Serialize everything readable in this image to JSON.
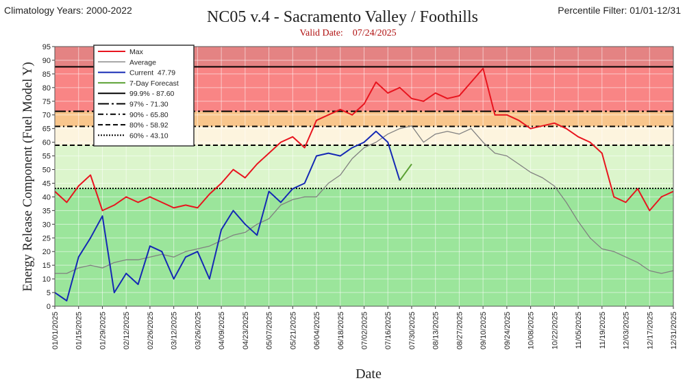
{
  "chart_data": {
    "type": "line",
    "title": "NC05 v.4 - Sacramento Valley / Foothills",
    "subtitle": "Valid Date:    07/24/2025",
    "top_left_note": "Climatology Years: 2000-2022",
    "top_right_note": "Percentile Filter:  01/01-12/31",
    "y_label": "Energy Release Component (Fuel Model Y)",
    "x_label": "Date",
    "x": [
      "01/01/2025",
      "01/08/2025",
      "01/15/2025",
      "01/22/2025",
      "01/29/2025",
      "02/05/2025",
      "02/12/2025",
      "02/19/2025",
      "02/26/2025",
      "03/05/2025",
      "03/12/2025",
      "03/19/2025",
      "03/26/2025",
      "04/02/2025",
      "04/09/2025",
      "04/16/2025",
      "04/23/2025",
      "04/30/2025",
      "05/07/2025",
      "05/14/2025",
      "05/21/2025",
      "05/28/2025",
      "06/04/2025",
      "06/11/2025",
      "06/18/2025",
      "06/25/2025",
      "07/02/2025",
      "07/09/2025",
      "07/16/2025",
      "07/23/2025",
      "07/30/2025",
      "08/06/2025",
      "08/13/2025",
      "08/20/2025",
      "08/27/2025",
      "09/03/2025",
      "09/10/2025",
      "09/17/2025",
      "09/24/2025",
      "10/01/2025",
      "10/08/2025",
      "10/15/2025",
      "10/22/2025",
      "10/29/2025",
      "11/05/2025",
      "11/12/2025",
      "11/19/2025",
      "11/26/2025",
      "12/03/2025",
      "12/10/2025",
      "12/17/2025",
      "12/24/2025",
      "12/31/2025"
    ],
    "series": [
      {
        "name": "Max",
        "color": "#e8141e",
        "width": 2,
        "values": [
          42,
          38,
          44,
          48,
          35,
          37,
          40,
          38,
          40,
          38,
          36,
          37,
          36,
          41,
          45,
          50,
          47,
          52,
          56,
          60,
          62,
          58,
          68,
          70,
          72,
          70,
          74,
          82,
          78,
          80,
          76,
          75,
          78,
          76,
          77,
          82,
          87,
          70,
          70,
          68,
          65,
          66,
          67,
          65,
          62,
          60,
          56,
          40,
          38,
          43,
          35,
          40,
          42
        ]
      },
      {
        "name": "Average",
        "color": "#808080",
        "width": 1.3,
        "values": [
          12,
          12,
          14,
          15,
          14,
          16,
          17,
          17,
          18,
          19,
          18,
          20,
          21,
          22,
          24,
          26,
          27,
          30,
          32,
          37,
          39,
          40,
          40,
          45,
          48,
          54,
          58,
          60,
          63,
          65,
          66,
          60,
          63,
          64,
          63,
          65,
          60,
          56,
          55,
          52,
          49,
          47,
          44,
          38,
          31,
          25,
          21,
          20,
          18,
          16,
          13,
          12,
          13
        ]
      },
      {
        "name": "Current  47.79",
        "color": "#1428b4",
        "width": 2,
        "values": [
          5,
          2,
          18,
          25,
          33,
          5,
          12,
          8,
          22,
          20,
          10,
          18,
          20,
          10,
          28,
          35,
          30,
          26,
          42,
          38,
          43,
          45,
          55,
          56,
          55,
          58,
          60,
          64,
          60,
          46,
          null,
          null,
          null,
          null,
          null,
          null,
          null,
          null,
          null,
          null,
          null,
          null,
          null,
          null,
          null,
          null,
          null,
          null,
          null,
          null,
          null,
          null,
          null
        ]
      },
      {
        "name": "7-Day Forecast",
        "color": "#5aa032",
        "width": 2,
        "values": [
          null,
          null,
          null,
          null,
          null,
          null,
          null,
          null,
          null,
          null,
          null,
          null,
          null,
          null,
          null,
          null,
          null,
          null,
          null,
          null,
          null,
          null,
          null,
          null,
          null,
          null,
          null,
          null,
          null,
          46,
          52,
          null,
          null,
          null,
          null,
          null,
          null,
          null,
          null,
          null,
          null,
          null,
          null,
          null,
          null,
          null,
          null,
          null,
          null,
          null,
          null,
          null,
          null
        ]
      }
    ],
    "thresholds": [
      {
        "label": "99.9% - 87.60",
        "value": 87.6,
        "style": "solid",
        "band_color": "#e48383"
      },
      {
        "label": "97% - 71.30",
        "value": 71.3,
        "style": "dashdot-long",
        "band_color": "#f98585"
      },
      {
        "label": "90% - 65.80",
        "value": 65.8,
        "style": "dashdot",
        "band_color": "#f9c68c"
      },
      {
        "label": "80% - 58.92",
        "value": 58.92,
        "style": "dashed",
        "band_color": "#fdf4de"
      },
      {
        "label": "60% - 43.10",
        "value": 43.1,
        "style": "dotted",
        "band_color": "#dcf5cc"
      }
    ],
    "base_band_color": "#9be59b",
    "xlim": [
      "01/01/2025",
      "12/31/2025"
    ],
    "xticks": [
      "01/01/2025",
      "01/15/2025",
      "01/29/2025",
      "02/12/2025",
      "02/26/2025",
      "03/12/2025",
      "03/26/2025",
      "04/09/2025",
      "04/23/2025",
      "05/07/2025",
      "05/21/2025",
      "06/04/2025",
      "06/18/2025",
      "07/02/2025",
      "07/16/2025",
      "07/30/2025",
      "08/13/2025",
      "08/27/2025",
      "09/10/2025",
      "09/24/2025",
      "10/08/2025",
      "10/22/2025",
      "11/05/2025",
      "11/19/2025",
      "12/03/2025",
      "12/17/2025",
      "12/31/2025"
    ],
    "ylim": [
      0,
      95
    ],
    "yticks": [
      0,
      5,
      10,
      15,
      20,
      25,
      30,
      35,
      40,
      45,
      50,
      55,
      60,
      65,
      70,
      75,
      80,
      85,
      90,
      95
    ],
    "grid": true
  }
}
